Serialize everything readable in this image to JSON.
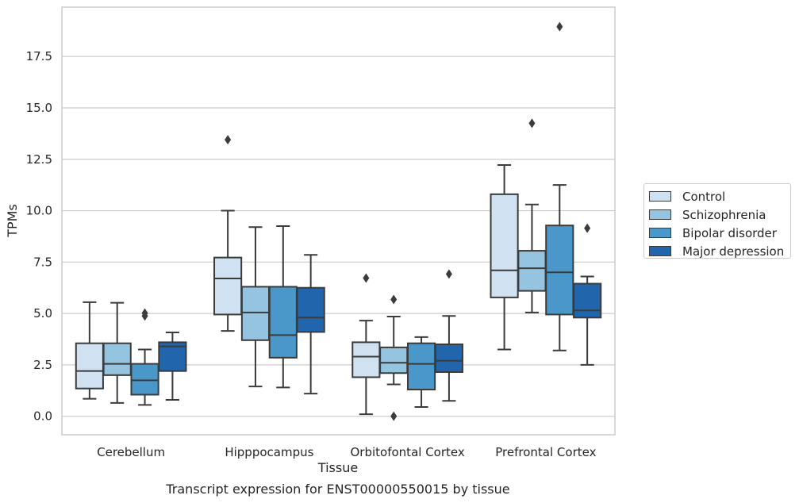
{
  "chart_data": {
    "type": "box",
    "title": "Transcript expression for ENST00000550015 by tissue",
    "xlabel": "Tissue",
    "ylabel": "TPMs",
    "categories": [
      "Cerebellum",
      "Hipppocampus",
      "Orbitofontal Cortex",
      "Prefrontal Cortex"
    ],
    "ylim": [
      -0.9,
      19.9
    ],
    "yticks": [
      0.0,
      2.5,
      5.0,
      7.5,
      10.0,
      12.5,
      15.0,
      17.5
    ],
    "ytick_labels": [
      "0.0",
      "2.5",
      "5.0",
      "7.5",
      "10.0",
      "12.5",
      "15.0",
      "17.5"
    ],
    "grid": "horizontal",
    "legend_position": "right",
    "series": [
      {
        "name": "Control",
        "color": "#d0e1f2",
        "boxes": [
          {
            "whislo": 0.85,
            "q1": 1.35,
            "med": 2.2,
            "q3": 3.55,
            "whishi": 5.55,
            "fliers": []
          },
          {
            "whislo": 4.15,
            "q1": 4.95,
            "med": 6.7,
            "q3": 7.72,
            "whishi": 10.0,
            "fliers": [
              13.45
            ]
          },
          {
            "whislo": 0.1,
            "q1": 1.9,
            "med": 2.9,
            "q3": 3.6,
            "whishi": 4.65,
            "fliers": [
              6.72
            ]
          },
          {
            "whislo": 3.25,
            "q1": 5.78,
            "med": 7.1,
            "q3": 10.8,
            "whishi": 12.22,
            "fliers": []
          }
        ]
      },
      {
        "name": "Schizophrenia",
        "color": "#94c4df",
        "boxes": [
          {
            "whislo": 0.65,
            "q1": 2.0,
            "med": 2.55,
            "q3": 3.55,
            "whishi": 5.52,
            "fliers": []
          },
          {
            "whislo": 1.45,
            "q1": 3.7,
            "med": 5.05,
            "q3": 6.3,
            "whishi": 9.2,
            "fliers": []
          },
          {
            "whislo": 1.55,
            "q1": 2.1,
            "med": 2.6,
            "q3": 3.35,
            "whishi": 4.85,
            "fliers": [
              5.68,
              0.0
            ]
          },
          {
            "whislo": 5.05,
            "q1": 6.1,
            "med": 7.2,
            "q3": 8.05,
            "whishi": 10.3,
            "fliers": [
              14.25
            ]
          }
        ]
      },
      {
        "name": "Bipolar disorder",
        "color": "#4a98c9",
        "boxes": [
          {
            "whislo": 0.55,
            "q1": 1.05,
            "med": 1.75,
            "q3": 2.55,
            "whishi": 3.25,
            "fliers": [
              5.02,
              4.88
            ]
          },
          {
            "whislo": 1.4,
            "q1": 2.85,
            "med": 3.95,
            "q3": 6.3,
            "whishi": 9.25,
            "fliers": []
          },
          {
            "whislo": 0.45,
            "q1": 1.3,
            "med": 2.55,
            "q3": 3.55,
            "whishi": 3.85,
            "fliers": []
          },
          {
            "whislo": 3.2,
            "q1": 4.95,
            "med": 7.0,
            "q3": 9.28,
            "whishi": 11.25,
            "fliers": [
              18.95
            ]
          }
        ]
      },
      {
        "name": "Major depression",
        "color": "#2166ac",
        "boxes": [
          {
            "whislo": 0.8,
            "q1": 2.2,
            "med": 3.4,
            "q3": 3.6,
            "whishi": 4.08,
            "fliers": []
          },
          {
            "whislo": 1.1,
            "q1": 4.1,
            "med": 4.8,
            "q3": 6.25,
            "whishi": 7.85,
            "fliers": []
          },
          {
            "whislo": 0.75,
            "q1": 2.15,
            "med": 2.7,
            "q3": 3.5,
            "whishi": 4.88,
            "fliers": [
              6.92
            ]
          },
          {
            "whislo": 2.5,
            "q1": 4.8,
            "med": 5.15,
            "q3": 6.45,
            "whishi": 6.8,
            "fliers": [
              9.15
            ]
          }
        ]
      }
    ]
  }
}
